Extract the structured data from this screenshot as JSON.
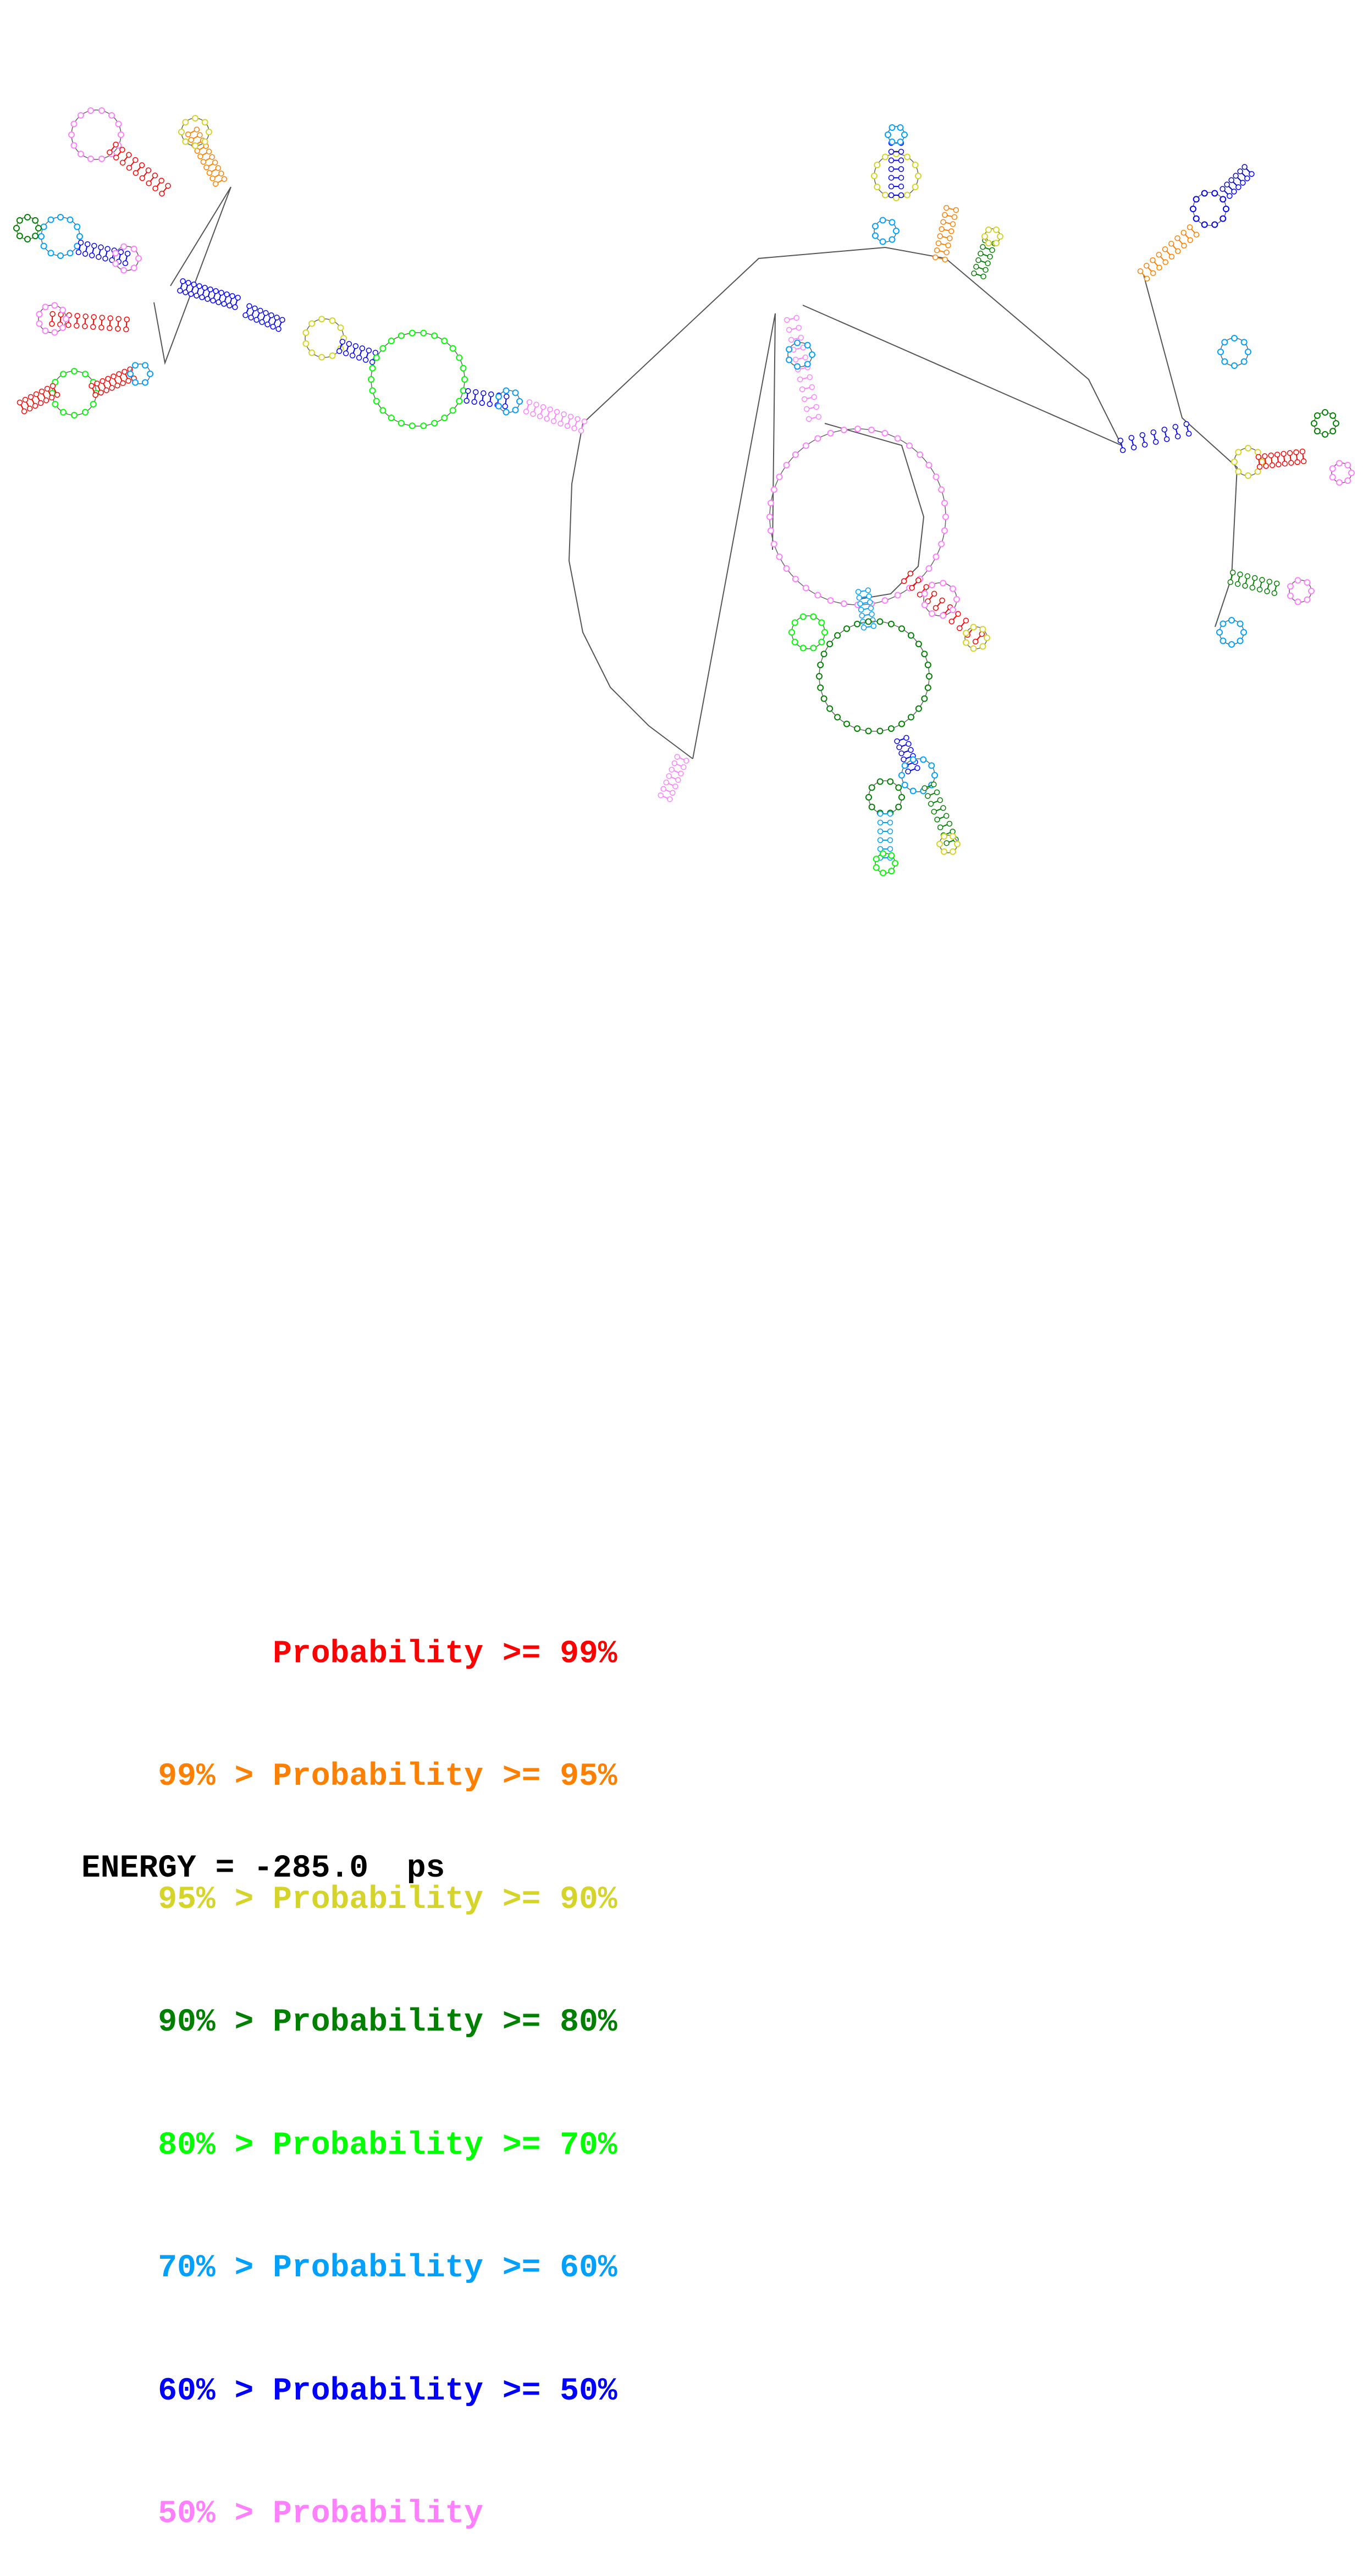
{
  "diagram": {
    "type": "rna-secondary-structure",
    "colors": {
      "backbone": "#555555",
      "p99": "#ff0000",
      "p95": "#ff8000",
      "p90": "#d4d42a",
      "p80": "#008000",
      "p70": "#00ff00",
      "p60": "#00a0ff",
      "p50": "#0000ff",
      "plow": "#ff80ff"
    }
  },
  "legend": {
    "rows": [
      {
        "prefix": "",
        "label": "Probability",
        "suffix": " >= 99%",
        "color": "#ff0000"
      },
      {
        "prefix": "99% > ",
        "label": "Probability",
        "suffix": " >= 95%",
        "color": "#ff8000"
      },
      {
        "prefix": "95% > ",
        "label": "Probability",
        "suffix": " >= 90%",
        "color": "#d4d42a"
      },
      {
        "prefix": "90% > ",
        "label": "Probability",
        "suffix": " >= 80%",
        "color": "#008000"
      },
      {
        "prefix": "80% > ",
        "label": "Probability",
        "suffix": " >= 70%",
        "color": "#00ff00"
      },
      {
        "prefix": "70% > ",
        "label": "Probability",
        "suffix": " >= 60%",
        "color": "#00a0ff"
      },
      {
        "prefix": "60% > ",
        "label": "Probability",
        "suffix": " >= 50%",
        "color": "#0000ff"
      },
      {
        "prefix": "50% > ",
        "label": "Probability",
        "suffix": "",
        "color": "#ff80ff"
      }
    ]
  },
  "energy": {
    "text": "ENERGY = -285.0  ps"
  }
}
